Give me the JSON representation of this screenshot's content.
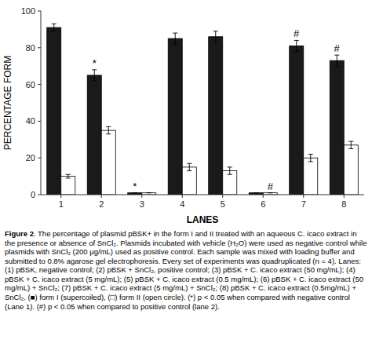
{
  "chart_data": {
    "type": "bar",
    "categories": [
      "1",
      "2",
      "3",
      "4",
      "5",
      "6",
      "7",
      "8"
    ],
    "series": [
      {
        "color": "#1a1a1a",
        "values": [
          91,
          65,
          1,
          85,
          86,
          1,
          81,
          73
        ],
        "errors": [
          2,
          3,
          0,
          3,
          3,
          0,
          3,
          3
        ]
      },
      {
        "color": "#ffffff",
        "values": [
          10,
          35,
          1,
          15,
          13,
          1,
          20,
          27
        ],
        "errors": [
          1,
          2,
          0,
          2,
          2,
          0,
          2,
          2
        ]
      }
    ],
    "ylim": [
      0,
      100
    ],
    "yticks": [
      0,
      20,
      40,
      60,
      80,
      100
    ],
    "grid": false,
    "xlabel": "LANES",
    "ylabel": "PERCENTAGE FORM",
    "annotations": [
      {
        "text": "*",
        "category": "2",
        "series": 0
      },
      {
        "text": "*",
        "category": "3",
        "series": 0
      },
      {
        "text": "#",
        "category": "6",
        "series": 1
      },
      {
        "text": "#",
        "category": "7",
        "series": 0
      },
      {
        "text": "#",
        "category": "8",
        "series": 0
      }
    ],
    "caption_title": "Figure 2",
    "caption": ". The percentage of plasmid pBSK+ in the form I and II treated with an aqueous C. icaco extract in the presence or absence of SnCl₂. Plasmids incubated with vehicle (H₂O) were used as negative control while plasmids with SnCl₂ (200 μg/mL) used as positive control. Each sample was mixed with loading buffer and submitted to 0.8% agarose gel electrophoresis. Every set of experiments was quadruplicated (n = 4). Lanes: (1) pBSK, negative control; (2) pBSK + SnCl₂, positive control; (3) pBSK + C. icaco extract (50 mg/mL); (4) pBSK + C. icaco extract (5 mg/mL); (5) pBSK + C. icaco extract (0.5 mg/mL); (6) pBSK + C. icaco extract (50 mg/mL) + SnCl₂; (7) pBSK + C. icaco extract (5 mg/mL) + SnCl₂; (8) pBSK + C. icaco extract (0.5mg/mL) + SnCl₂. (■) form I (supercoiled), (□) form II (open circle). (*) p < 0.05 when compared with negative control (Lane 1). (#) p < 0.05 when compared to positive control (lane 2)."
  }
}
